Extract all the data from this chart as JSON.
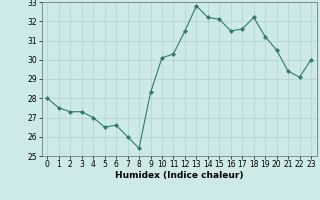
{
  "x": [
    0,
    1,
    2,
    3,
    4,
    5,
    6,
    7,
    8,
    9,
    10,
    11,
    12,
    13,
    14,
    15,
    16,
    17,
    18,
    19,
    20,
    21,
    22,
    23
  ],
  "y": [
    28.0,
    27.5,
    27.3,
    27.3,
    27.0,
    26.5,
    26.6,
    26.0,
    25.4,
    28.3,
    30.1,
    30.3,
    31.5,
    32.8,
    32.2,
    32.1,
    31.5,
    31.6,
    32.2,
    31.2,
    30.5,
    29.4,
    29.1,
    30.0
  ],
  "line_color": "#2d7a6e",
  "marker": "D",
  "marker_size": 2.0,
  "bg_color": "#ceeae8",
  "grid_color": "#aed4d2",
  "xlabel": "Humidex (Indice chaleur)",
  "xlim": [
    -0.5,
    23.5
  ],
  "ylim": [
    25,
    33
  ],
  "yticks": [
    25,
    26,
    27,
    28,
    29,
    30,
    31,
    32,
    33
  ],
  "xticks": [
    0,
    1,
    2,
    3,
    4,
    5,
    6,
    7,
    8,
    9,
    10,
    11,
    12,
    13,
    14,
    15,
    16,
    17,
    18,
    19,
    20,
    21,
    22,
    23
  ],
  "tick_fontsize": 5.5,
  "label_fontsize": 6.5
}
